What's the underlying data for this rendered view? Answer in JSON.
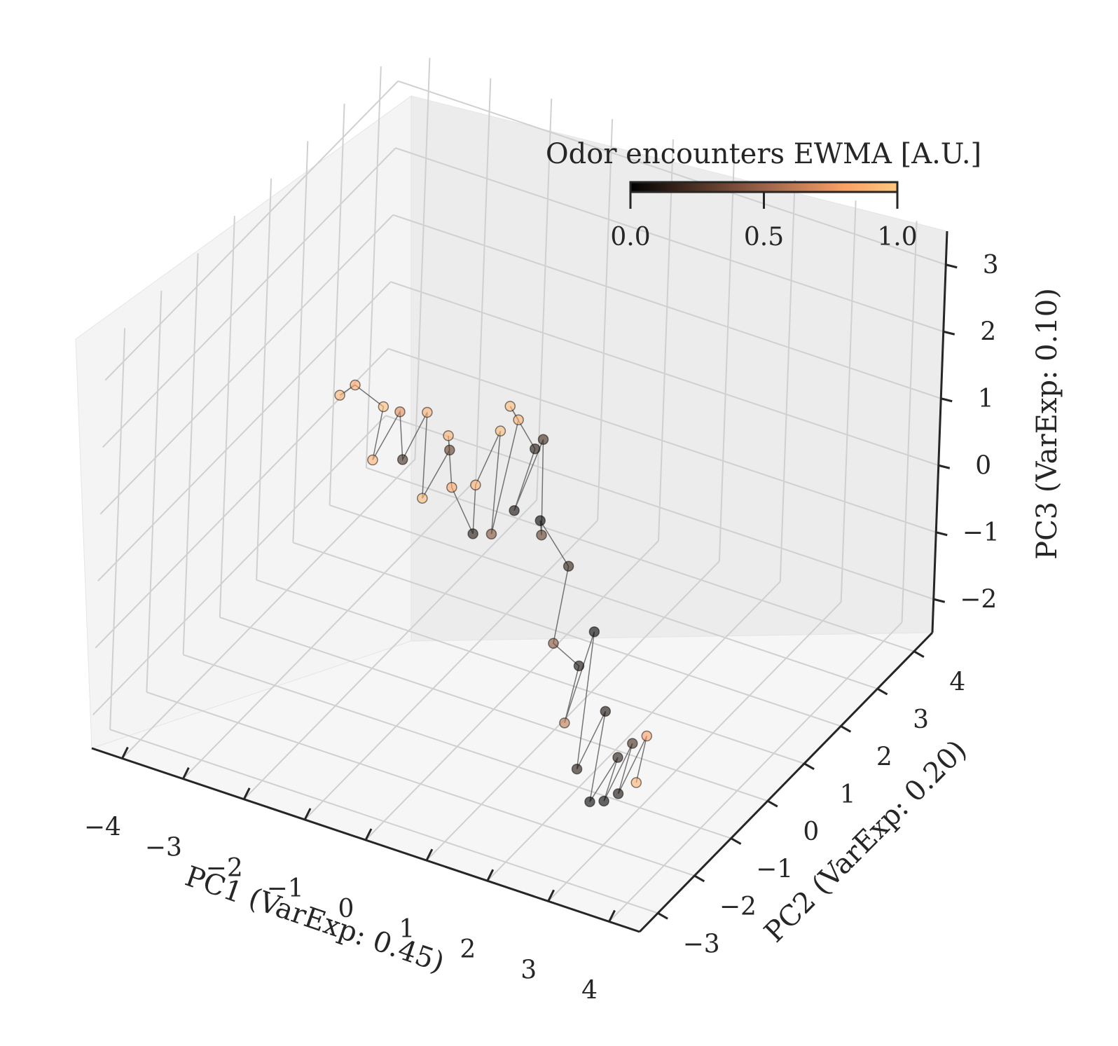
{
  "chart_data": {
    "type": "scatter",
    "projection": "3d",
    "series": [
      {
        "marker": "circle with connecting line",
        "colormap": "copper",
        "points": [
          {
            "x": -3.6,
            "y": 1.6,
            "z": 0.2,
            "c": 0.9
          },
          {
            "x": -3.3,
            "y": 1.5,
            "z": 0.5,
            "c": 0.85
          },
          {
            "x": -3.0,
            "y": 1.8,
            "z": 0.1,
            "c": 0.95
          },
          {
            "x": -2.8,
            "y": 1.2,
            "z": -0.3,
            "c": 0.9
          },
          {
            "x": -2.5,
            "y": 1.4,
            "z": 0.4,
            "c": 0.7
          },
          {
            "x": -2.2,
            "y": 1.0,
            "z": 0.0,
            "c": 0.2
          },
          {
            "x": -2.0,
            "y": 1.3,
            "z": 0.6,
            "c": 0.9
          },
          {
            "x": -1.8,
            "y": 0.9,
            "z": -0.4,
            "c": 0.95
          },
          {
            "x": -1.5,
            "y": 1.1,
            "z": 0.3,
            "c": 0.3
          },
          {
            "x": -1.3,
            "y": 0.7,
            "z": 0.8,
            "c": 0.9
          },
          {
            "x": -1.1,
            "y": 0.5,
            "z": 0.2,
            "c": 0.85
          },
          {
            "x": -0.9,
            "y": 0.8,
            "z": -0.6,
            "c": 0.1
          },
          {
            "x": -0.6,
            "y": 0.3,
            "z": 0.5,
            "c": 0.9
          },
          {
            "x": -0.4,
            "y": 0.6,
            "z": 1.2,
            "c": 0.95
          },
          {
            "x": -0.2,
            "y": 0.1,
            "z": 0.0,
            "c": 0.4
          },
          {
            "x": 0.0,
            "y": 0.4,
            "z": 1.6,
            "c": 0.9
          },
          {
            "x": 0.2,
            "y": -0.2,
            "z": 2.2,
            "c": 0.95
          },
          {
            "x": 0.4,
            "y": 0.2,
            "z": 1.4,
            "c": 0.1
          },
          {
            "x": 0.5,
            "y": -0.5,
            "z": 0.9,
            "c": 0.05
          },
          {
            "x": 0.7,
            "y": -0.1,
            "z": 1.8,
            "c": 0.2
          },
          {
            "x": 0.9,
            "y": -0.4,
            "z": 0.6,
            "c": 0.3
          },
          {
            "x": 1.1,
            "y": -0.8,
            "z": 1.1,
            "c": 0.0
          },
          {
            "x": 1.3,
            "y": -0.3,
            "z": 0.2,
            "c": 0.15
          },
          {
            "x": 1.5,
            "y": -1.0,
            "z": -0.5,
            "c": 0.4
          },
          {
            "x": 1.7,
            "y": -0.6,
            "z": -1.0,
            "c": 0.05
          },
          {
            "x": 1.9,
            "y": -1.3,
            "z": -1.4,
            "c": 0.6
          },
          {
            "x": 2.1,
            "y": -0.9,
            "z": -0.2,
            "c": 0.0
          },
          {
            "x": 2.3,
            "y": -1.6,
            "z": -1.8,
            "c": 0.1
          },
          {
            "x": 2.5,
            "y": -1.2,
            "z": -1.1,
            "c": 0.05
          },
          {
            "x": 2.7,
            "y": -1.9,
            "z": -2.0,
            "c": 0.0
          },
          {
            "x": 2.9,
            "y": -1.5,
            "z": -1.5,
            "c": 0.1
          },
          {
            "x": 3.1,
            "y": -2.2,
            "z": -1.7,
            "c": 0.0
          },
          {
            "x": 3.3,
            "y": -1.8,
            "z": -1.0,
            "c": 0.2
          },
          {
            "x": 3.5,
            "y": -2.5,
            "z": -1.3,
            "c": 0.05
          },
          {
            "x": 3.7,
            "y": -2.1,
            "z": -0.6,
            "c": 0.8
          },
          {
            "x": 3.9,
            "y": -2.7,
            "z": -0.9,
            "c": 0.9
          }
        ]
      }
    ],
    "xlabel": "PC1 (VarExp: 0.45)",
    "ylabel": "PC2 (VarExp: 0.20)",
    "zlabel": "PC3 (VarExp: 0.10)",
    "xlim": [
      -4.5,
      4.5
    ],
    "ylim": [
      -3.5,
      4.5
    ],
    "zlim": [
      -2.5,
      3.5
    ],
    "xticks": [
      "−4",
      "−3",
      "−2",
      "−1",
      "0",
      "1",
      "2",
      "3",
      "4"
    ],
    "yticks": [
      "−3",
      "−2",
      "−1",
      "0",
      "1",
      "2",
      "3",
      "4"
    ],
    "zticks": [
      "−2",
      "−1",
      "0",
      "1",
      "2",
      "3"
    ],
    "grid": true,
    "colorbar": {
      "title": "Odor encounters EWMA [A.U.]",
      "ticks": [
        "0.0",
        "0.5",
        "1.0"
      ],
      "range": [
        0,
        1
      ],
      "placement": "top-right",
      "orientation": "horizontal"
    },
    "colors": {
      "cmap_low": "#000000",
      "cmap_high": "#ffc77f",
      "line": "#555555",
      "pane": "#f2f2f2",
      "grid": "#d0d0d0"
    }
  }
}
